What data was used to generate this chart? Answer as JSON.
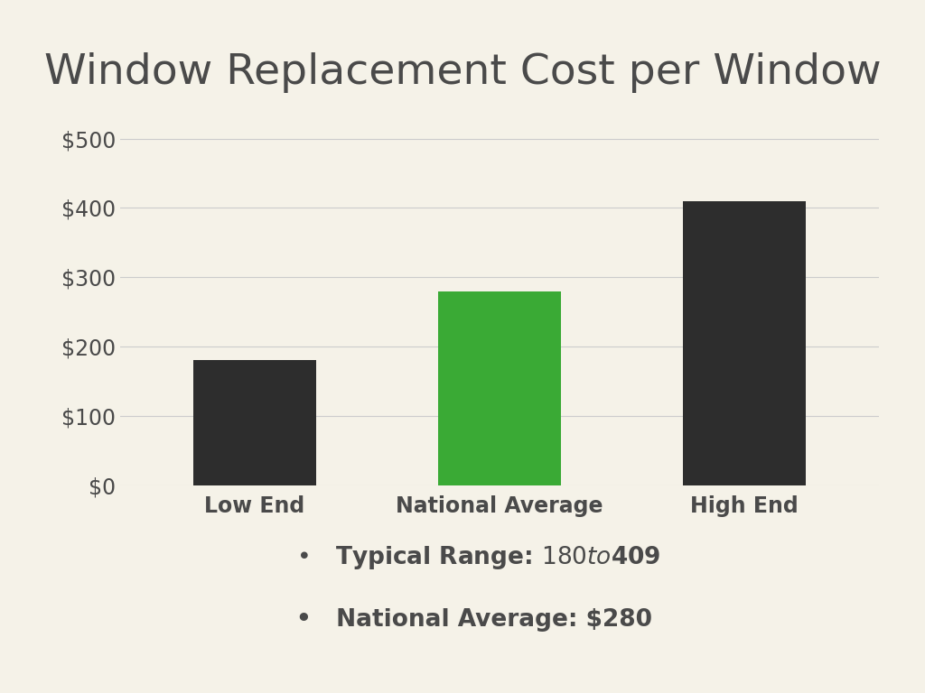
{
  "title": "Window Replacement Cost per Window",
  "categories": [
    "Low End",
    "National Average",
    "High End"
  ],
  "values": [
    180,
    280,
    409
  ],
  "bar_colors": [
    "#2d2d2d",
    "#3aaa35",
    "#2d2d2d"
  ],
  "background_color": "#f5f2e8",
  "ylim": [
    0,
    520
  ],
  "yticks": [
    0,
    100,
    200,
    300,
    400,
    500
  ],
  "title_fontsize": 34,
  "tick_fontsize": 17,
  "xlabel_fontsize": 17,
  "legend_fontsize": 19,
  "legend_items": [
    "Typical Range: $180 to $409",
    "National Average: $280"
  ],
  "text_color": "#4a4a4a",
  "grid_color": "#cccccc"
}
